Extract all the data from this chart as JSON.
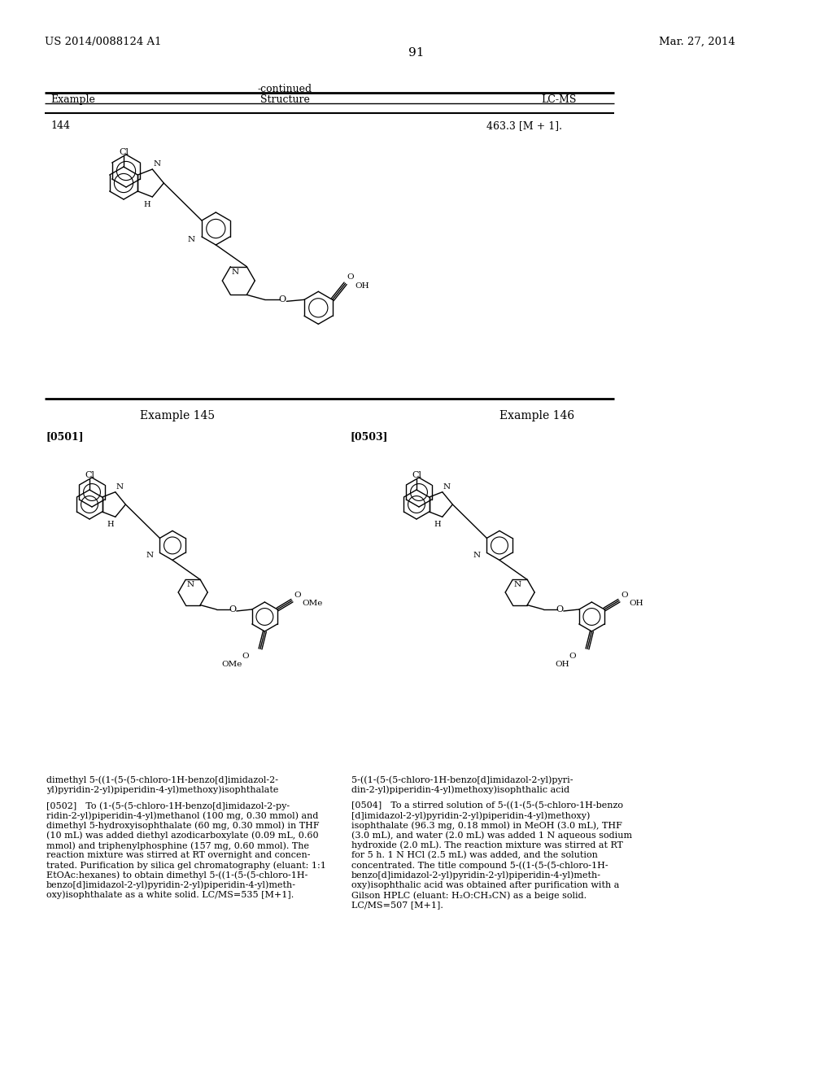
{
  "page_number": "91",
  "patent_number": "US 2014/0088124 A1",
  "patent_date": "Mar. 27, 2014",
  "continued_label": "-continued",
  "table_headers": [
    "Example",
    "Structure",
    "LC-MS"
  ],
  "example_144_number": "144",
  "example_144_lcms": "463.3 [M + 1].",
  "example_145_label": "Example 145",
  "example_146_label": "Example 146",
  "para_0501": "[0501]",
  "para_0503": "[0503]",
  "bg_color": "#ffffff",
  "line_color": "#000000",
  "text_color": "#000000",
  "bottom_text_left": "dimethyl 5-((1-(5-(5-chloro-1H-benzo[d]imidazol-2-\nyl)pyridin-2-yl)piperidin-4-yl)methoxy)isophthalate",
  "bottom_text_right": "5-((1-(5-(5-chloro-1H-benzo[d]imidazol-2-yl)pyri-\ndin-2-yl)piperidin-4-yl)methoxy)isophthalic acid",
  "para_0502_text": "[0502] To (1-(5-(5-chloro-1H-benzo[d]imidazol-2-py-\nridin-2-yl)piperidin-4-yl)methanol (100 mg, 0.30 mmol) and\ndimethyl 5-hydroxyisophthalate (60 mg, 0.30 mmol) in THF\n(10 mL) was added diethyl azodicarboxylate (0.09 mL, 0.60\nmmol) and triphenylphosphine (157 mg, 0.60 mmol). The\nreaction mixture was stirred at RT overnight and concen-\ntrated. Purification by silica gel chromatography (eluant: 1:1\nEtOAc:hexanes) to obtain dimethyl 5-((1-(5-(5-chloro-1H-\nbenzo[d]imidazol-2-yl)pyridin-2-yl)piperidin-4-yl)meth-\noxy)isophthalate as a white solid. LC/MS=535 [M+1].",
  "para_0504_text": "[0504] To a stirred solution of 5-((1-(5-(5-chloro-1H-benzo\n[d]imidazol-2-yl)pyridin-2-yl)piperidin-4-yl)methoxy)\nisophthalate (96.3 mg, 0.18 mmol) in MeOH (3.0 mL), THF\n(3.0 mL), and water (2.0 mL) was added 1 N aqueous sodium\nhydroxide (2.0 mL). The reaction mixture was stirred at RT\nfor 5 h. 1 N HCl (2.5 mL) was added, and the solution\nconcentrated. The title compound 5-((1-(5-(5-chloro-1H-\nbenzo[d]imidazol-2-yl)pyridin-2-yl)piperidin-4-yl)meth-\noxy)isophthalic acid was obtained after purification with a\nGilson HPLC (eluant: H₂O:CH₃CN) as a beige solid.\nLC/MS=507 [M+1]."
}
